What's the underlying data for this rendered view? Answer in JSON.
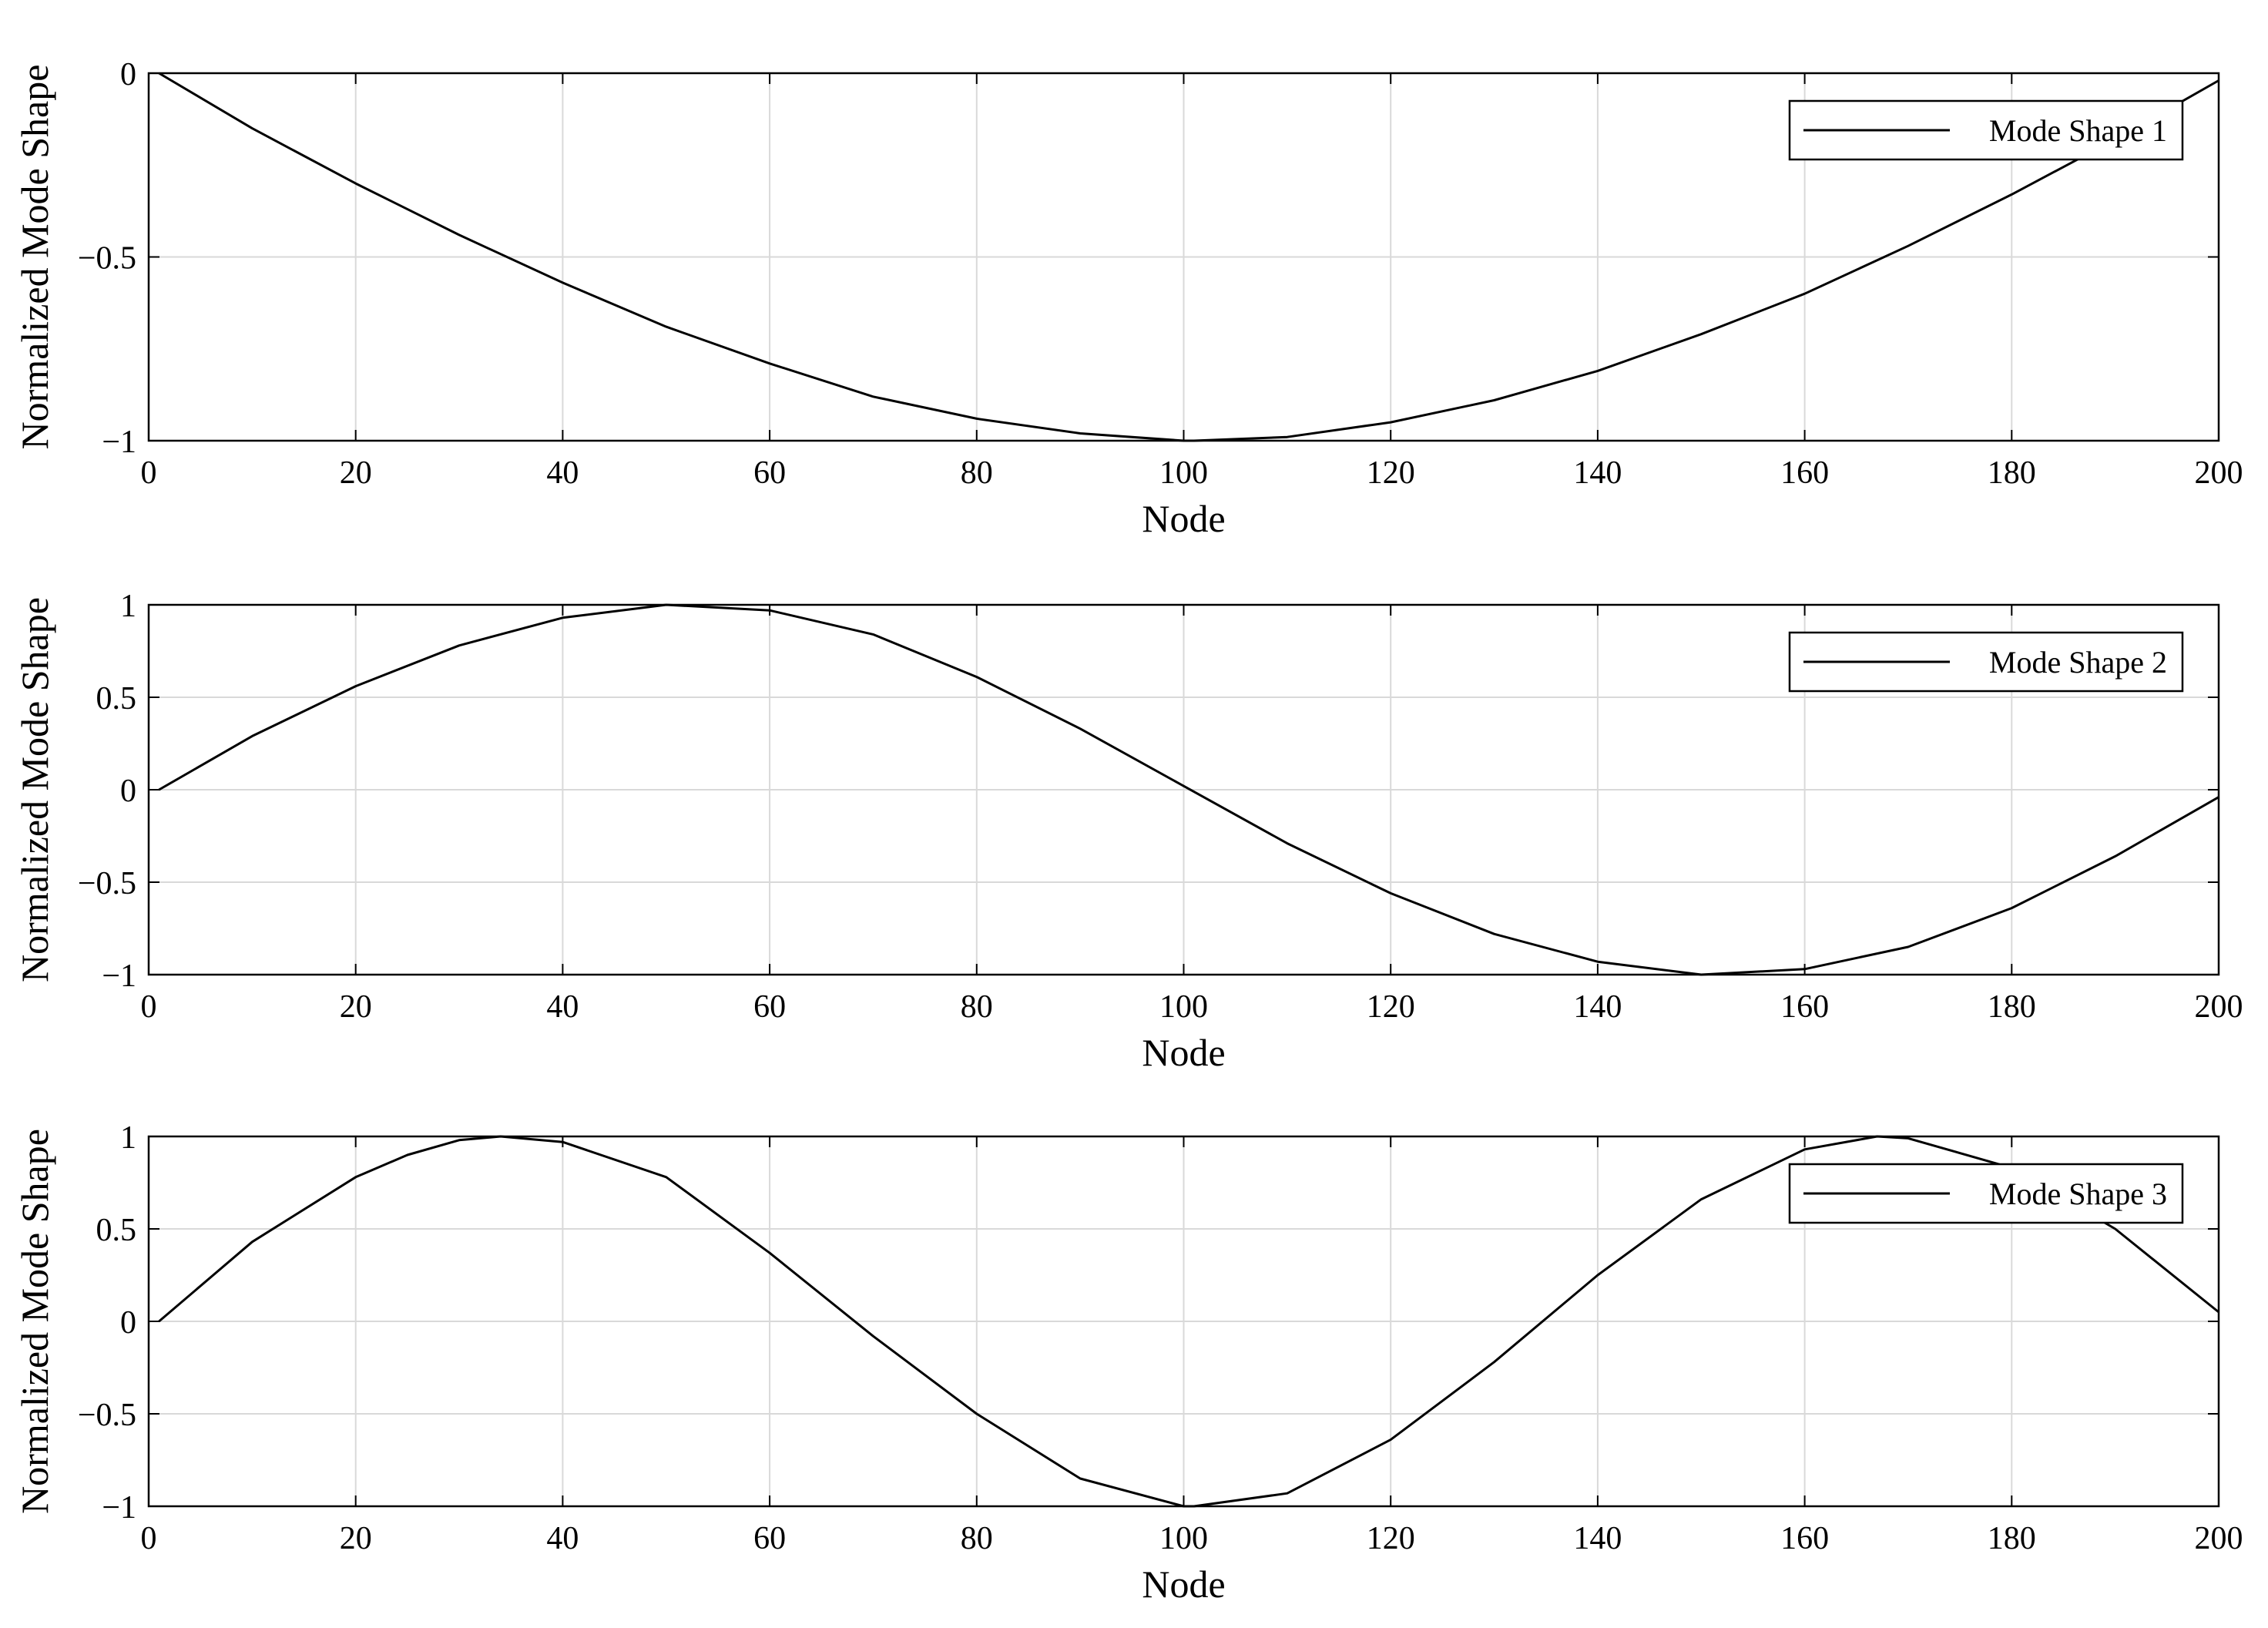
{
  "chart_data": [
    {
      "type": "line",
      "xlabel": "Node",
      "ylabel": "Normalized Mode Shape",
      "xlim": [
        0,
        200
      ],
      "ylim": [
        -1,
        0
      ],
      "xticks": [
        "0",
        "20",
        "40",
        "60",
        "80",
        "100",
        "120",
        "140",
        "160",
        "180",
        "200"
      ],
      "yticks": [
        "0",
        "−0.5",
        "−1"
      ],
      "grid": true,
      "legend_position": "top-right",
      "series": [
        {
          "name": "Mode Shape 1",
          "color": "#000000",
          "x": [
            1,
            10,
            20,
            30,
            40,
            50,
            60,
            70,
            80,
            90,
            100,
            101,
            110,
            120,
            130,
            140,
            150,
            160,
            170,
            180,
            190,
            200
          ],
          "y": [
            0,
            -0.15,
            -0.3,
            -0.44,
            -0.57,
            -0.69,
            -0.79,
            -0.88,
            -0.94,
            -0.98,
            -1.0,
            -1.0,
            -0.99,
            -0.95,
            -0.89,
            -0.81,
            -0.71,
            -0.6,
            -0.47,
            -0.33,
            -0.18,
            -0.02
          ]
        }
      ]
    },
    {
      "type": "line",
      "xlabel": "Node",
      "ylabel": "Normalized Mode Shape",
      "xlim": [
        0,
        200
      ],
      "ylim": [
        -1,
        1
      ],
      "xticks": [
        "0",
        "20",
        "40",
        "60",
        "80",
        "100",
        "120",
        "140",
        "160",
        "180",
        "200"
      ],
      "yticks": [
        "1",
        "0.5",
        "0",
        "−0.5",
        "−1"
      ],
      "grid": true,
      "legend_position": "top-right",
      "series": [
        {
          "name": "Mode Shape 2",
          "color": "#000000",
          "x": [
            1,
            10,
            20,
            30,
            40,
            50,
            60,
            70,
            80,
            90,
            100,
            110,
            120,
            130,
            140,
            150,
            160,
            170,
            180,
            190,
            200
          ],
          "y": [
            0,
            0.29,
            0.56,
            0.78,
            0.93,
            1.0,
            0.97,
            0.84,
            0.61,
            0.33,
            0.02,
            -0.29,
            -0.56,
            -0.78,
            -0.93,
            -1.0,
            -0.97,
            -0.85,
            -0.64,
            -0.36,
            -0.04
          ]
        }
      ]
    },
    {
      "type": "line",
      "xlabel": "Node",
      "ylabel": "Normalized Mode Shape",
      "xlim": [
        0,
        200
      ],
      "ylim": [
        -1,
        1
      ],
      "xticks": [
        "0",
        "20",
        "40",
        "60",
        "80",
        "100",
        "120",
        "140",
        "160",
        "180",
        "200"
      ],
      "yticks": [
        "1",
        "0.5",
        "0",
        "−0.5",
        "−1"
      ],
      "grid": true,
      "legend_position": "top-right",
      "series": [
        {
          "name": "Mode Shape 3",
          "color": "#000000",
          "x": [
            1,
            10,
            20,
            25,
            30,
            34,
            40,
            50,
            60,
            70,
            80,
            90,
            100,
            101,
            110,
            120,
            130,
            140,
            150,
            160,
            167,
            170,
            180,
            190,
            200
          ],
          "y": [
            0,
            0.43,
            0.78,
            0.9,
            0.98,
            1.0,
            0.97,
            0.78,
            0.37,
            -0.08,
            -0.5,
            -0.85,
            -1.0,
            -1.0,
            -0.93,
            -0.64,
            -0.22,
            0.25,
            0.66,
            0.93,
            1.0,
            0.99,
            0.83,
            0.5,
            0.05
          ]
        }
      ]
    }
  ]
}
